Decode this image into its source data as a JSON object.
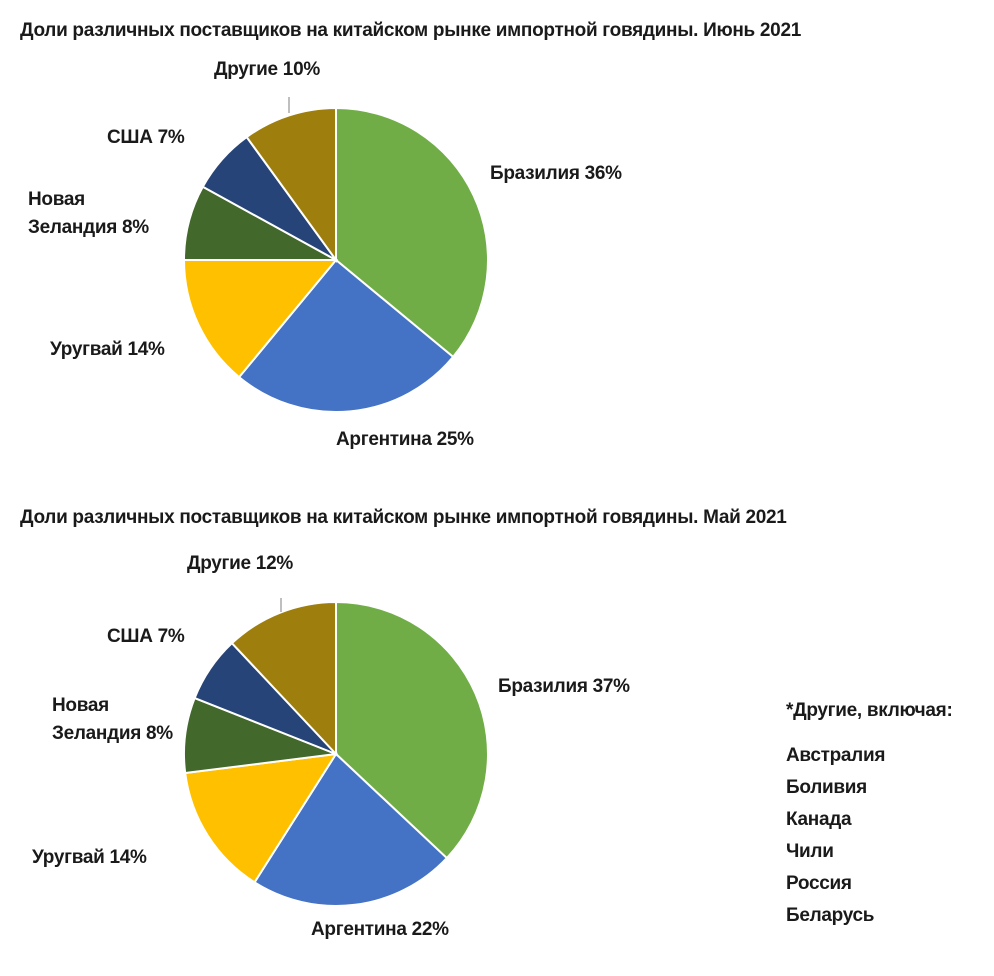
{
  "colors": {
    "Бразилия": "#70AD47",
    "Аргентина": "#4472C4",
    "Уругвай": "#FFC000",
    "Новая Зеландия": "#43682B",
    "США": "#264478",
    "Другие": "#9E7E0C"
  },
  "chart_data": [
    {
      "type": "pie",
      "title": "Доли различных поставщиков на китайском рынке импортной говядины. Июнь 2021",
      "slices": [
        {
          "name": "Бразилия",
          "value": 36,
          "label_lines": [
            "Бразилия 36%"
          ]
        },
        {
          "name": "Аргентина",
          "value": 25,
          "label_lines": [
            "Аргентина 25%"
          ]
        },
        {
          "name": "Уругвай",
          "value": 14,
          "label_lines": [
            "Уругвай 14%"
          ]
        },
        {
          "name": "Новая Зеландия",
          "value": 8,
          "label_lines": [
            "Новая",
            "Зеландия 8%"
          ]
        },
        {
          "name": "США",
          "value": 7,
          "label_lines": [
            "США 7%"
          ]
        },
        {
          "name": "Другие",
          "value": 10,
          "label_lines": [
            "Другие 10%"
          ]
        }
      ]
    },
    {
      "type": "pie",
      "title": "Доли различных поставщиков на китайском рынке импортной говядины. Май 2021",
      "slices": [
        {
          "name": "Бразилия",
          "value": 37,
          "label_lines": [
            "Бразилия 37%"
          ]
        },
        {
          "name": "Аргентина",
          "value": 22,
          "label_lines": [
            "Аргентина 22%"
          ]
        },
        {
          "name": "Уругвай",
          "value": 14,
          "label_lines": [
            "Уругвай 14%"
          ]
        },
        {
          "name": "Новая Зеландия",
          "value": 8,
          "label_lines": [
            "Новая",
            "Зеландия 8%"
          ]
        },
        {
          "name": "США",
          "value": 7,
          "label_lines": [
            "США 7%"
          ]
        },
        {
          "name": "Другие",
          "value": 12,
          "label_lines": [
            "Другие 12%"
          ]
        }
      ]
    }
  ],
  "notes": {
    "title": "*Другие, включая:",
    "items": [
      "Австралия",
      "Боливия",
      "Канада",
      "Чили",
      "Россия",
      "Беларусь"
    ]
  }
}
